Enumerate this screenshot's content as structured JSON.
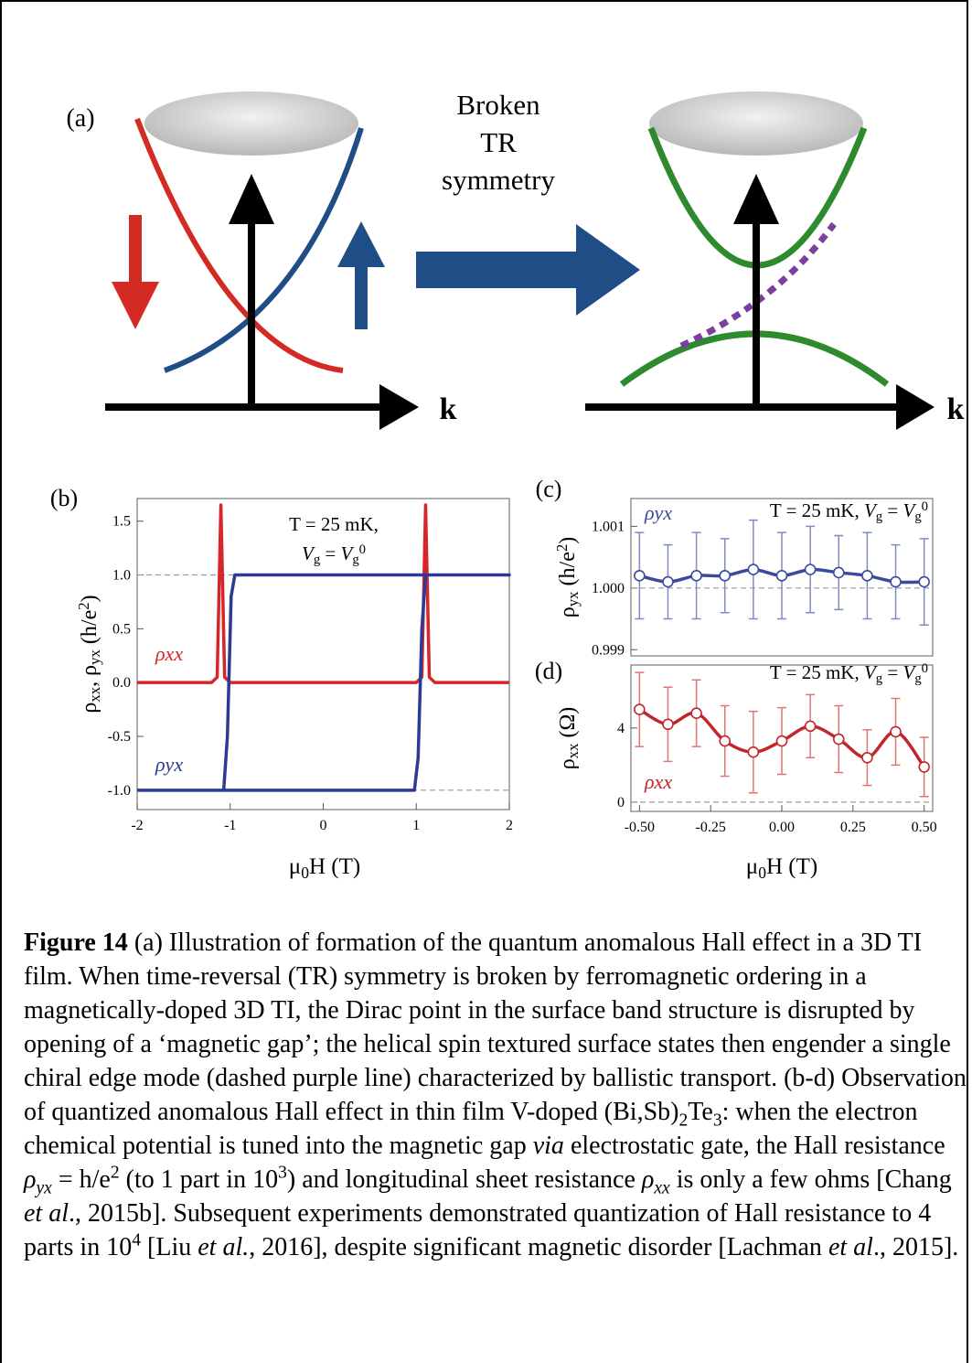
{
  "panel_a": {
    "label": "(a)",
    "arrow_text": [
      "Broken",
      "TR",
      "symmetry"
    ],
    "axis_labels": [
      "k",
      "k"
    ]
  },
  "chart_data": [
    {
      "type": "line",
      "label": "(b)",
      "xlabel": [
        {
          "text": "μ"
        },
        {
          "text": "0",
          "style": "sub"
        },
        {
          "text": "H (T)"
        }
      ],
      "ylabel": [
        {
          "text": "ρ"
        },
        {
          "text": "xx",
          "style": "sub"
        },
        {
          "text": ", ρ"
        },
        {
          "text": "yx",
          "style": "sub"
        },
        {
          "text": " (h/e"
        },
        {
          "text": "2",
          "style": "sup"
        },
        {
          "text": ")"
        }
      ],
      "annotation": [
        [
          {
            "text": "T = 25 mK,"
          }
        ],
        [
          {
            "text": "V",
            "style": "i"
          },
          {
            "text": "g",
            "style": "sub"
          },
          {
            "text": " = "
          },
          {
            "text": "V",
            "style": "i"
          },
          {
            "text": "g",
            "style": "sub"
          },
          {
            "text": "0",
            "style": "sup"
          }
        ]
      ],
      "xlim": [
        -2,
        2
      ],
      "ylim": [
        -1.18,
        1.71
      ],
      "xticks": [
        -2,
        -1,
        0,
        1,
        2
      ],
      "yticks": [
        1.5,
        {
          "value": 1.0,
          "label": "1.0"
        },
        0.5,
        {
          "value": 0,
          "label": "0.0"
        },
        -0.5,
        {
          "value": -1.0,
          "label": "-1.0"
        }
      ],
      "hlines": [
        1,
        -1
      ],
      "smooth": false,
      "series": [
        {
          "name": "ρxx",
          "color": "#d7262b",
          "x": [
            -2,
            -1.2,
            -1.14,
            -1.1,
            -1.06,
            -1.0,
            1.0,
            1.06,
            1.1,
            1.14,
            1.2,
            2
          ],
          "values": [
            0,
            0,
            0.05,
            1.65,
            0.05,
            0,
            0,
            0.05,
            1.65,
            0.05,
            0,
            0
          ]
        },
        {
          "name": "ρyx",
          "color": "#2b3a94",
          "x": [
            -2,
            0.98,
            1.02,
            1.06,
            1.1,
            2,
            -0.95,
            -0.99,
            -1.03,
            -1.07,
            -2
          ],
          "values": [
            -1,
            -1,
            -0.7,
            0.5,
            1,
            1,
            1,
            0.8,
            -0.5,
            -1,
            -1
          ]
        }
      ]
    },
    {
      "type": "line",
      "label": "(c)",
      "ylabel": [
        {
          "text": "ρ"
        },
        {
          "text": "yx",
          "style": "sub"
        },
        {
          "text": " (h/e"
        },
        {
          "text": "2",
          "style": "sup"
        },
        {
          "text": ")"
        }
      ],
      "annotation": [
        [
          {
            "text": "T = 25 mK, "
          },
          {
            "text": "V",
            "style": "i"
          },
          {
            "text": "g",
            "style": "sub"
          },
          {
            "text": " = "
          },
          {
            "text": "V",
            "style": "i"
          },
          {
            "text": "g",
            "style": "sub"
          },
          {
            "text": "0",
            "style": "sup"
          }
        ]
      ],
      "xlim": [
        -0.53,
        0.53
      ],
      "ylim": [
        0.9989,
        1.00145
      ],
      "yticks": [
        1.001,
        {
          "value": 1.0,
          "label": "1.000"
        },
        0.999
      ],
      "hlines": [
        1.0
      ],
      "smooth": true,
      "markers": true,
      "series": [
        {
          "name": "ρyx",
          "color": "#3a4a9c",
          "error_color": "#7f8cc0",
          "x": [
            -0.5,
            -0.4,
            -0.3,
            -0.2,
            -0.1,
            0,
            0.1,
            0.2,
            0.3,
            0.4,
            0.5
          ],
          "values": [
            1.0002,
            1.0001,
            1.0002,
            1.0002,
            1.0003,
            1.0002,
            1.0003,
            1.00025,
            1.0002,
            1.0001,
            1.0001
          ],
          "errors": [
            0.0007,
            0.0006,
            0.0007,
            0.0006,
            0.0008,
            0.0007,
            0.0007,
            0.0006,
            0.0007,
            0.0006,
            0.0007
          ]
        }
      ]
    },
    {
      "type": "line",
      "label": "(d)",
      "xlabel": [
        {
          "text": "μ"
        },
        {
          "text": "0",
          "style": "sub"
        },
        {
          "text": "H (T)"
        }
      ],
      "ylabel": [
        {
          "text": "ρ"
        },
        {
          "text": "xx",
          "style": "sub"
        },
        {
          "text": " (Ω)"
        }
      ],
      "annotation": [
        [
          {
            "text": "T = 25 mK, "
          },
          {
            "text": "V",
            "style": "i"
          },
          {
            "text": "g",
            "style": "sub"
          },
          {
            "text": " = "
          },
          {
            "text": "V",
            "style": "i"
          },
          {
            "text": "g",
            "style": "sub"
          },
          {
            "text": "0",
            "style": "sup"
          }
        ]
      ],
      "xlim": [
        -0.53,
        0.53
      ],
      "ylim": [
        -0.5,
        7.4
      ],
      "xticks": [
        {
          "value": -0.5,
          "label": "-0.50"
        },
        -0.25,
        {
          "value": 0,
          "label": "0.00"
        },
        0.25,
        {
          "value": 0.5,
          "label": "0.50"
        }
      ],
      "yticks": [
        0,
        4
      ],
      "hlines": [
        0
      ],
      "smooth": true,
      "markers": true,
      "series": [
        {
          "name": "ρxx",
          "color": "#c0262b",
          "error_color": "#e07575",
          "x": [
            -0.5,
            -0.4,
            -0.3,
            -0.2,
            -0.1,
            0,
            0.1,
            0.2,
            0.3,
            0.4,
            0.5
          ],
          "values": [
            5.0,
            4.2,
            4.8,
            3.3,
            2.7,
            3.3,
            4.1,
            3.4,
            2.4,
            3.8,
            1.9
          ],
          "errors": [
            2.0,
            2.0,
            1.8,
            1.9,
            2.2,
            1.8,
            1.7,
            1.8,
            1.5,
            1.8,
            1.6
          ]
        }
      ]
    }
  ],
  "caption": [
    {
      "text": "Figure 14",
      "style": "b"
    },
    {
      "text": " (a) Illustration of formation of the quantum anomalous Hall effect in a 3D TI film. When time-reversal (TR) symmetry is broken by ferromagnetic ordering in a magnetically-doped 3D TI, the Dirac point in the surface band structure is disrupted by opening of a ‘magnetic gap’; the helical spin textured surface states then engender a single chiral edge mode (dashed purple line) characterized by ballistic transport. (b-d) Observation of quantized anomalous Hall effect in thin film V-doped (Bi,Sb)"
    },
    {
      "text": "2",
      "style": "sub"
    },
    {
      "text": "Te"
    },
    {
      "text": "3",
      "style": "sub"
    },
    {
      "text": ": when the electron chemical potential is tuned into the magnetic gap "
    },
    {
      "text": "via",
      "style": "i"
    },
    {
      "text": " electrostatic gate, the Hall resistance "
    },
    {
      "text": "ρ",
      "style": "i"
    },
    {
      "text": "yx",
      "style": "sub i"
    },
    {
      "text": " = h/e"
    },
    {
      "text": "2",
      "style": "sup"
    },
    {
      "text": " (to 1 part in 10"
    },
    {
      "text": "3",
      "style": "sup"
    },
    {
      "text": ") and longitudinal sheet resistance "
    },
    {
      "text": "ρ",
      "style": "i"
    },
    {
      "text": "xx",
      "style": "sub i"
    },
    {
      "text": " is only a few ohms [Chang "
    },
    {
      "text": "et al",
      "style": "i"
    },
    {
      "text": "., 2015b].  Subsequent experiments demonstrated quantization of Hall resistance to 4 parts in 10"
    },
    {
      "text": "4",
      "style": "sup"
    },
    {
      "text": " [Liu "
    },
    {
      "text": "et al.",
      "style": "i"
    },
    {
      "text": ", 2016], despite significant magnetic disorder [Lachman "
    },
    {
      "text": "et al",
      "style": "i"
    },
    {
      "text": "., 2015]."
    }
  ]
}
